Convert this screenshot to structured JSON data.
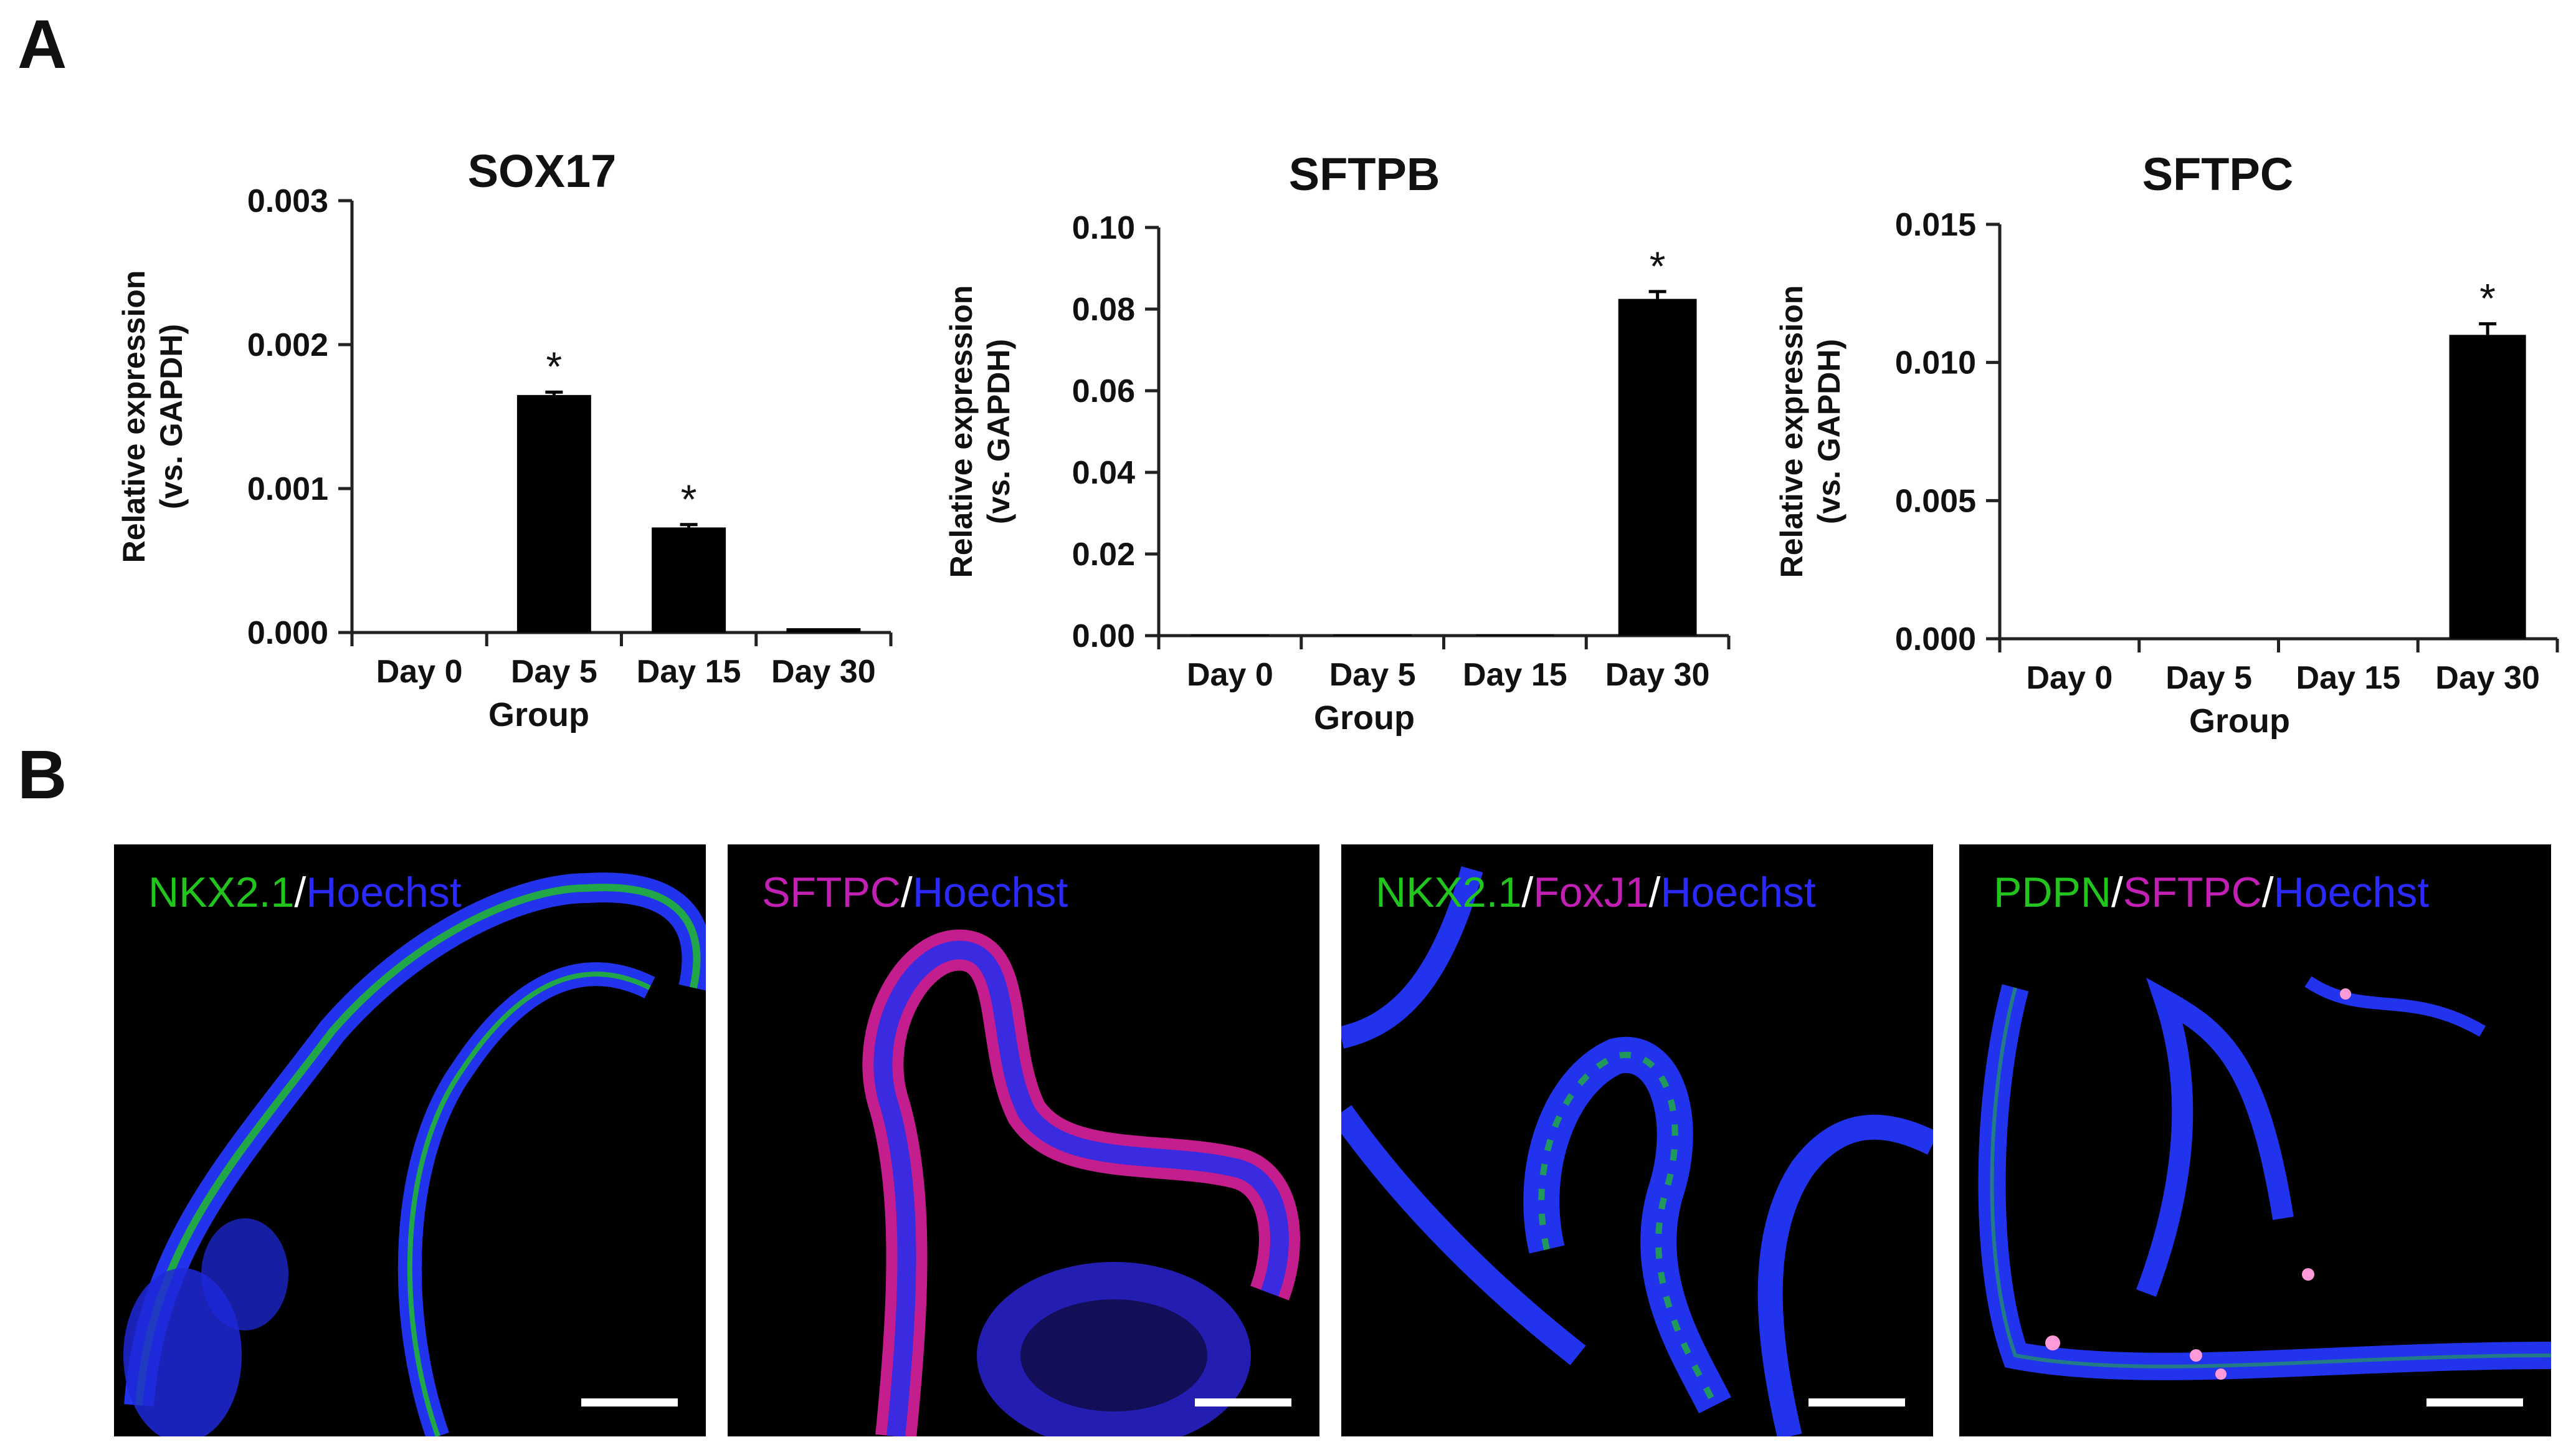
{
  "panels": {
    "a_label": "A",
    "b_label": "B"
  },
  "chart_data": [
    {
      "type": "bar",
      "title": "SOX17",
      "xlabel": "Group",
      "ylabel": "Relative expression",
      "ylabel_line2": "(vs. GAPDH)",
      "categories": [
        "Day 0",
        "Day 5",
        "Day 15",
        "Day 30"
      ],
      "values": [
        0.0,
        0.00165,
        0.00073,
        3e-05
      ],
      "errors": [
        0.0,
        2e-05,
        2e-05,
        0.0
      ],
      "significant": [
        false,
        true,
        true,
        false
      ],
      "sig_marker": "*",
      "ylim": [
        0,
        0.003
      ],
      "yticks": [
        0,
        0.001,
        0.002,
        0.003
      ],
      "ytick_labels": [
        "0.000",
        "0.001",
        "0.002",
        "0.003"
      ],
      "bar_color": "#000000"
    },
    {
      "type": "bar",
      "title": "SFTPB",
      "xlabel": "Group",
      "ylabel": "Relative expression",
      "ylabel_line2": "(vs. GAPDH)",
      "categories": [
        "Day 0",
        "Day 5",
        "Day 15",
        "Day 30"
      ],
      "values": [
        0.0003,
        0.0003,
        0.0003,
        0.0825
      ],
      "errors": [
        0.0,
        0.0,
        0.0,
        0.0018
      ],
      "significant": [
        false,
        false,
        false,
        true
      ],
      "sig_marker": "*",
      "ylim": [
        0,
        0.1
      ],
      "yticks": [
        0,
        0.02,
        0.04,
        0.06,
        0.08,
        0.1
      ],
      "ytick_labels": [
        "0.00",
        "0.02",
        "0.04",
        "0.06",
        "0.08",
        "0.10"
      ],
      "bar_color": "#000000"
    },
    {
      "type": "bar",
      "title": "SFTPC",
      "xlabel": "Group",
      "ylabel": "Relative expression",
      "ylabel_line2": "(vs. GAPDH)",
      "categories": [
        "Day 0",
        "Day 5",
        "Day 15",
        "Day 30"
      ],
      "values": [
        0.0,
        0.0,
        0.0,
        0.011
      ],
      "errors": [
        0.0,
        0.0,
        0.0,
        0.0004
      ],
      "significant": [
        false,
        false,
        false,
        true
      ],
      "sig_marker": "*",
      "ylim": [
        0,
        0.015
      ],
      "yticks": [
        0,
        0.005,
        0.01,
        0.015
      ],
      "ytick_labels": [
        "0.000",
        "0.005",
        "0.010",
        "0.015"
      ],
      "bar_color": "#000000"
    }
  ],
  "micrographs": [
    {
      "segments": [
        {
          "text": "NKX2.1",
          "color": "#22c41e"
        },
        {
          "text": "/",
          "color": "#ffffff"
        },
        {
          "text": "Hoechst",
          "color": "#2a2aff"
        }
      ]
    },
    {
      "segments": [
        {
          "text": "SFTPC",
          "color": "#c21fb5"
        },
        {
          "text": "/",
          "color": "#ffffff"
        },
        {
          "text": "Hoechst",
          "color": "#2a2aff"
        }
      ]
    },
    {
      "segments": [
        {
          "text": "NKX2.1",
          "color": "#22c41e"
        },
        {
          "text": "/",
          "color": "#ffffff"
        },
        {
          "text": "FoxJ1",
          "color": "#c21fb5"
        },
        {
          "text": "/",
          "color": "#ffffff"
        },
        {
          "text": "Hoechst",
          "color": "#2a2aff"
        }
      ]
    },
    {
      "segments": [
        {
          "text": "PDPN",
          "color": "#22c41e"
        },
        {
          "text": "/",
          "color": "#ffffff"
        },
        {
          "text": "SFTPC",
          "color": "#c21fb5"
        },
        {
          "text": "/",
          "color": "#ffffff"
        },
        {
          "text": "Hoechst",
          "color": "#2a2aff"
        }
      ]
    }
  ]
}
